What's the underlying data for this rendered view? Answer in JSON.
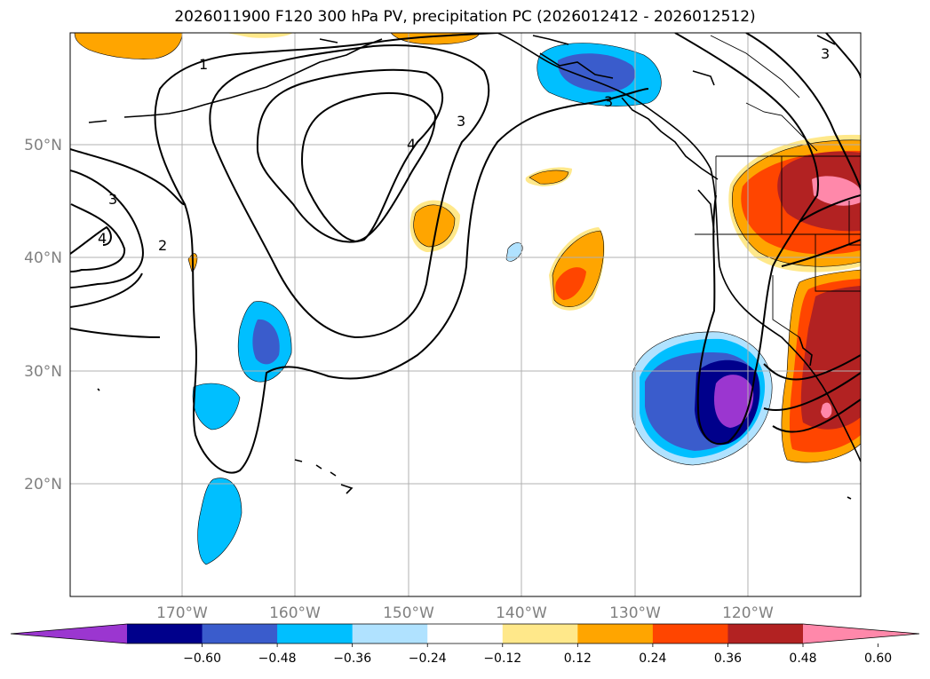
{
  "title": "2026011900 F120 300 hPa PV, precipitation PC (2026012412 - 2026012512)",
  "latitude_labels": [
    "50°N",
    "40°N",
    "30°N",
    "20°N"
  ],
  "longitude_labels": [
    "170°W",
    "160°W",
    "150°W",
    "140°W",
    "130°W",
    "120°W"
  ],
  "contour_labels": [
    "1",
    "2",
    "3",
    "3",
    "4",
    "4",
    "3",
    "3"
  ],
  "colorbar": {
    "tick_labels": [
      "−0.60",
      "−0.48",
      "−0.36",
      "−0.24",
      "−0.12",
      "0.12",
      "0.24",
      "0.36",
      "0.48",
      "0.60"
    ],
    "colors": [
      "#9b36d0",
      "#00008b",
      "#3a5ccc",
      "#00bfff",
      "#b0e2ff",
      "#ffffff",
      "#ffe88a",
      "#ffa500",
      "#ff4500",
      "#b22222",
      "#ff88aa"
    ]
  },
  "colors": {
    "grid": "#b0b0b0",
    "coast": "#000000",
    "contour": "#000000"
  }
}
